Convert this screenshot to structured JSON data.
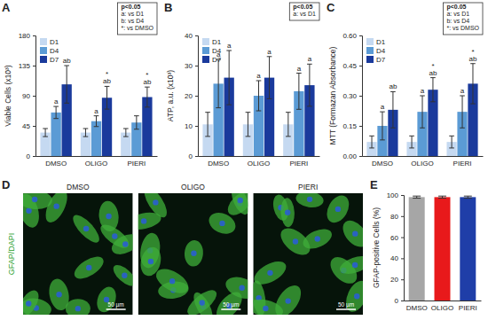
{
  "chart_data": [
    {
      "type": "bar",
      "title": "A",
      "y_label": "Viable Cells (x10³)",
      "categories": [
        "DMSO",
        "OLIGO",
        "PIERI"
      ],
      "series": [
        {
          "name": "D1",
          "color": "#c5d9f1",
          "values": [
            35,
            35,
            35
          ],
          "errors": [
            6,
            6,
            6
          ],
          "significance": [
            null,
            null,
            null
          ]
        },
        {
          "name": "D4",
          "color": "#5b9bd5",
          "values": [
            65,
            52,
            50
          ],
          "errors": [
            9,
            8,
            10
          ],
          "significance": [
            [
              "a"
            ],
            [
              "a"
            ],
            null
          ]
        },
        {
          "name": "D7",
          "color": "#1a3a9c",
          "values": [
            107,
            87,
            88
          ],
          "errors": [
            28,
            17,
            15
          ],
          "significance": [
            [
              "ab"
            ],
            [
              "*",
              "ab"
            ],
            [
              "*",
              "ab"
            ]
          ]
        }
      ],
      "ylim": [
        0,
        180
      ],
      "yticks": [
        0,
        45,
        90,
        135,
        180
      ],
      "legend": "upper left",
      "annotations": [
        "p<0.05",
        "a: vs D1",
        "b: vs D4",
        "*: vs DMSO"
      ]
    },
    {
      "type": "bar",
      "title": "B",
      "y_label": "ATP, a.u. (x10³)",
      "categories": [
        "DMSO",
        "OLIGO",
        "PIERI"
      ],
      "series": [
        {
          "name": "D1",
          "color": "#c5d9f1",
          "values": [
            10.5,
            10.5,
            10.5
          ],
          "errors": [
            4,
            4,
            4
          ],
          "significance": [
            null,
            null,
            null
          ]
        },
        {
          "name": "D4",
          "color": "#5b9bd5",
          "values": [
            24,
            20,
            21.5
          ],
          "errors": [
            8,
            5,
            6
          ],
          "significance": [
            [
              "a"
            ],
            [
              "a"
            ],
            [
              "a"
            ]
          ]
        },
        {
          "name": "D7",
          "color": "#1a3a9c",
          "values": [
            26,
            26,
            23.5
          ],
          "errors": [
            9,
            7,
            7
          ],
          "significance": [
            [
              "a"
            ],
            [
              "a"
            ],
            [
              "a"
            ]
          ]
        }
      ],
      "ylim": [
        0,
        40
      ],
      "yticks": [
        0,
        10,
        20,
        30,
        40
      ],
      "legend": "upper left",
      "annotations": [
        "p<0.05",
        "a: vs D1"
      ]
    },
    {
      "type": "bar",
      "title": "C",
      "y_label": "MTT (Formazan Absorbance)",
      "categories": [
        "DMSO",
        "OLIGO",
        "PIERI"
      ],
      "series": [
        {
          "name": "D1",
          "color": "#c5d9f1",
          "values": [
            0.07,
            0.07,
            0.07
          ],
          "errors": [
            0.03,
            0.03,
            0.03
          ],
          "significance": [
            null,
            null,
            null
          ]
        },
        {
          "name": "D4",
          "color": "#5b9bd5",
          "values": [
            0.15,
            0.22,
            0.22
          ],
          "errors": [
            0.07,
            0.08,
            0.08
          ],
          "significance": [
            [
              "a"
            ],
            [
              "a"
            ],
            [
              "a"
            ]
          ]
        },
        {
          "name": "D7",
          "color": "#1a3a9c",
          "values": [
            0.23,
            0.33,
            0.36
          ],
          "errors": [
            0.09,
            0.06,
            0.1
          ],
          "significance": [
            [
              "ab"
            ],
            [
              "*",
              "ab"
            ],
            [
              "*",
              "ab"
            ]
          ]
        }
      ],
      "ylim": [
        0,
        0.6
      ],
      "yticks": [
        {
          "value": 0,
          "label": "0.00"
        },
        {
          "value": 0.15,
          "label": "0.15"
        },
        {
          "value": 0.3,
          "label": "0.30"
        },
        {
          "value": 0.45,
          "label": "0.45"
        },
        {
          "value": 0.6,
          "label": "0.60"
        }
      ],
      "legend": "upper left",
      "annotations": [
        "p<0.05",
        "a: vs D1",
        "b: vs D4",
        "*: vs DMSO"
      ]
    },
    {
      "type": "image",
      "title": "D",
      "y_label": "GFAP/DAPI",
      "panels": [
        "DMSO",
        "OLIGO",
        "PIERI"
      ],
      "scale_bar": "50 µm"
    },
    {
      "type": "bar",
      "title": "E",
      "y_label": "GFAP-positive Cells (%)",
      "categories": [
        "DMSO",
        "OLIGO",
        "PIERI"
      ],
      "values": [
        98,
        98,
        98
      ],
      "errors": [
        1,
        1,
        1
      ],
      "colors": [
        "#a6a6a6",
        "#e8191b",
        "#1f3ea8"
      ],
      "ylim": [
        0,
        100
      ],
      "yticks": [
        0,
        20,
        40,
        60,
        80,
        100
      ]
    }
  ]
}
